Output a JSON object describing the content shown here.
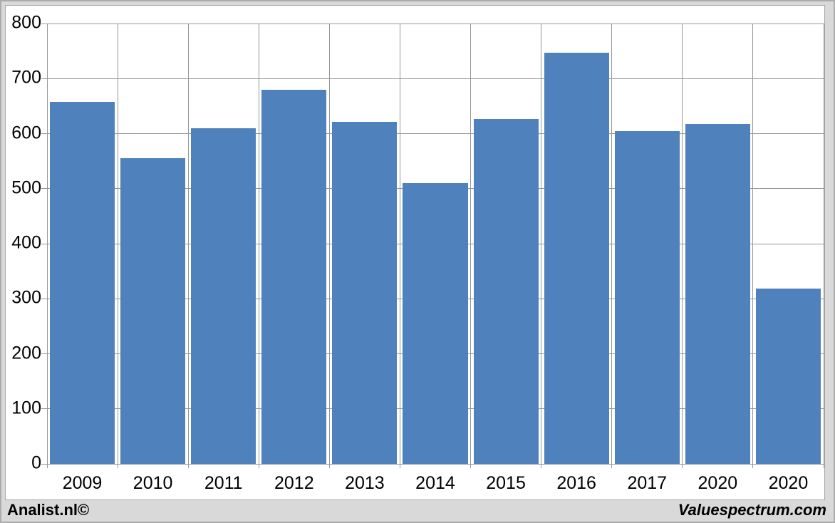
{
  "footer": {
    "brand_left": "Analist.nl©",
    "brand_right": "Valuespectrum.com"
  },
  "chart_data": {
    "type": "bar",
    "title": "",
    "xlabel": "",
    "ylabel": "",
    "categories": [
      "2009",
      "2010",
      "2011",
      "2012",
      "2013",
      "2014",
      "2015",
      "2016",
      "2017",
      "2020",
      "2020"
    ],
    "values": [
      657,
      555,
      610,
      680,
      622,
      510,
      627,
      747,
      604,
      617,
      318
    ],
    "ylim": [
      0,
      800
    ],
    "yticks": [
      0,
      100,
      200,
      300,
      400,
      500,
      600,
      700,
      800
    ],
    "grid": true,
    "legend_position": "none",
    "colors": {
      "bar": "#4F81BD",
      "gridline": "#969696",
      "axis_text": "#000000",
      "chart_background": "#FFFFFF",
      "page_background": "#D9D9D9",
      "frame_border": "#A6A6A6",
      "outer_border": "#ABABAB"
    }
  }
}
